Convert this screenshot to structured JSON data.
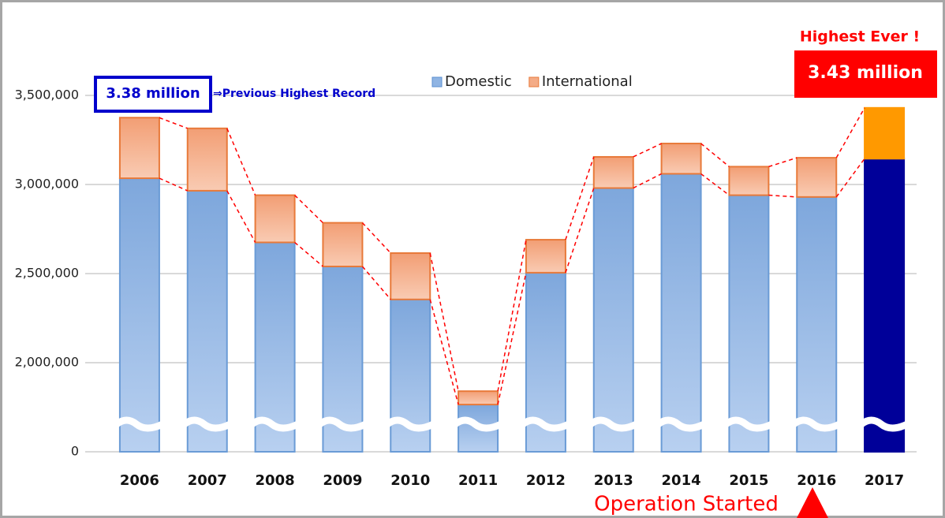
{
  "chart_data": {
    "type": "bar",
    "stacked": true,
    "categories": [
      "2006",
      "2007",
      "2008",
      "2009",
      "2010",
      "2011",
      "2012",
      "2013",
      "2014",
      "2015",
      "2016",
      "2017"
    ],
    "series": [
      {
        "name": "Domestic",
        "color": "#8fb4e3",
        "colors": [
          "#8fb4e3",
          "#8fb4e3",
          "#8fb4e3",
          "#8fb4e3",
          "#8fb4e3",
          "#8fb4e3",
          "#8fb4e3",
          "#8fb4e3",
          "#8fb4e3",
          "#8fb4e3",
          "#8fb4e3",
          "#000099"
        ],
        "values": [
          3035000,
          2965000,
          2675000,
          2540000,
          2355000,
          1765000,
          2505000,
          2980000,
          3060000,
          2940000,
          2930000,
          3145000
        ]
      },
      {
        "name": "International",
        "color": "#f4ab86",
        "colors": [
          "#f4ab86",
          "#f4ab86",
          "#f4ab86",
          "#f4ab86",
          "#f4ab86",
          "#f4ab86",
          "#f4ab86",
          "#f4ab86",
          "#f4ab86",
          "#f4ab86",
          "#f4ab86",
          "#ff9900"
        ],
        "values": [
          340000,
          350000,
          265000,
          245000,
          260000,
          75000,
          185000,
          175000,
          170000,
          160000,
          220000,
          285000
        ]
      }
    ],
    "ylim": [
      0,
      3500000
    ],
    "axis_break": [
      0,
      1500000
    ],
    "yticks": [
      {
        "value": 0,
        "label": "0"
      },
      {
        "value": 2000000,
        "label": "2,000,000"
      },
      {
        "value": 2500000,
        "label": "2,500,000"
      },
      {
        "value": 3000000,
        "label": "3,000,000"
      },
      {
        "value": 3500000,
        "label": "3,500,000"
      }
    ],
    "grid": true,
    "legend": "top",
    "annotations": {
      "previous_value": "3.38 million",
      "previous_note": "⇒Previous Highest Record",
      "highest_note": "Highest Ever !",
      "highest_value": "3.43 million",
      "operation": "Operation Started"
    }
  }
}
